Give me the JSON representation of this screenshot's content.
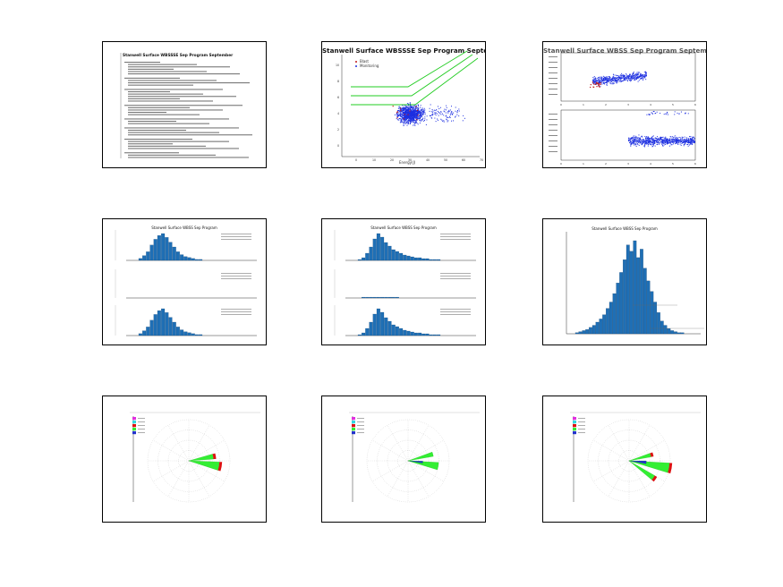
{
  "colors": {
    "scatter": "#1d2fe0",
    "scatter_highlight": "#c01818",
    "guide_lines": "#22cc22",
    "bar": "#1f6fb5",
    "bar_edge": "#0c3c6b",
    "rose_green": "#33ee33",
    "rose_red": "#dd1111",
    "rose_blue": "#2233cc",
    "legend_magenta": "#e030e0",
    "legend_cyan": "#30d8e0"
  },
  "panels": [
    {
      "id": "summary",
      "type": "text",
      "heading": "Stanwell Surface WBSSSE Sep Program September"
    },
    {
      "id": "scatter-main",
      "type": "scatter",
      "title": "Stanwell Surface WBSSSE Sep Program September",
      "xlabel": "Energy(J)",
      "ylabel": "",
      "x_ticks": [
        "0",
        "10",
        "20",
        "30",
        "40",
        "50",
        "60",
        "70"
      ],
      "y_ticks": [
        "0",
        "2",
        "4",
        "6",
        "8",
        "10"
      ],
      "legend": [
        "Blast",
        "Monitoring"
      ]
    },
    {
      "id": "scatter-split",
      "type": "scatter",
      "title": "Stanwell Surface WBSS Sep Program September",
      "xlabel": "",
      "ylabel": "",
      "x_ticks_top": [
        "0",
        "1",
        "2",
        "3",
        "4",
        "5",
        "6"
      ],
      "x_ticks_bottom": [
        "0",
        "1",
        "2",
        "3",
        "4",
        "5",
        "6"
      ]
    },
    {
      "id": "hist-1",
      "type": "bar",
      "title": "Stanwell Surface WBSS Sep Program",
      "series": [
        {
          "values": [
            2,
            5,
            9,
            16,
            22,
            26,
            28,
            24,
            19,
            14,
            9,
            6,
            4,
            3,
            2,
            1,
            1
          ]
        },
        {
          "values": [
            0,
            0,
            0,
            0,
            0,
            0,
            0,
            0,
            0,
            0,
            0,
            0,
            0,
            0,
            0,
            0,
            0
          ]
        },
        {
          "values": [
            2,
            5,
            9,
            16,
            22,
            26,
            28,
            24,
            19,
            14,
            9,
            6,
            4,
            3,
            2,
            1,
            1
          ]
        }
      ]
    },
    {
      "id": "hist-2",
      "type": "bar",
      "title": "Stanwell Surface WBSS Sep Program",
      "series": [
        {
          "values": [
            1,
            3,
            8,
            15,
            24,
            30,
            26,
            20,
            16,
            12,
            10,
            8,
            6,
            5,
            4,
            3,
            3,
            2,
            2,
            1,
            1,
            1
          ]
        },
        {
          "values": [
            0,
            1,
            1,
            1,
            1,
            1,
            1,
            1,
            1,
            1,
            1,
            0,
            0,
            0,
            0,
            0,
            0,
            0,
            0,
            0,
            0,
            0
          ]
        },
        {
          "values": [
            1,
            3,
            8,
            15,
            24,
            30,
            26,
            20,
            16,
            12,
            10,
            8,
            6,
            5,
            4,
            3,
            3,
            2,
            2,
            1,
            1,
            1
          ]
        }
      ]
    },
    {
      "id": "hist-3",
      "type": "bar",
      "title": "Stanwell Surface WBSS Sep Program",
      "values": [
        1,
        2,
        3,
        4,
        6,
        8,
        11,
        14,
        18,
        24,
        30,
        38,
        48,
        58,
        70,
        84,
        78,
        88,
        72,
        80,
        62,
        50,
        40,
        30,
        20,
        12,
        8,
        5,
        3,
        2,
        1,
        1
      ]
    },
    {
      "id": "rose-1",
      "type": "rose",
      "title": "",
      "xlabel": "",
      "wedges": [
        {
          "dir": 100,
          "len": 0.62,
          "width": 16,
          "color": "green",
          "tip": "red"
        },
        {
          "dir": 80,
          "len": 0.5,
          "width": 12,
          "color": "green",
          "tip": "red"
        }
      ]
    },
    {
      "id": "rose-2",
      "type": "rose",
      "title": "",
      "xlabel": "",
      "wedges": [
        {
          "dir": 100,
          "len": 0.62,
          "width": 14,
          "color": "green",
          "tip": "none"
        },
        {
          "dir": 75,
          "len": 0.52,
          "width": 10,
          "color": "green",
          "tip": "none"
        },
        {
          "dir": 95,
          "len": 0.3,
          "width": 8,
          "color": "blue",
          "tip": "none"
        }
      ]
    },
    {
      "id": "rose-3",
      "type": "rose",
      "title": "",
      "xlabel": "",
      "wedges": [
        {
          "dir": 100,
          "len": 0.82,
          "width": 14,
          "color": "green",
          "tip": "red"
        },
        {
          "dir": 75,
          "len": 0.45,
          "width": 10,
          "color": "green",
          "tip": "red"
        },
        {
          "dir": 125,
          "len": 0.6,
          "width": 10,
          "color": "green",
          "tip": "red"
        },
        {
          "dir": 95,
          "len": 0.35,
          "width": 10,
          "color": "blue",
          "tip": "none"
        }
      ]
    }
  ]
}
